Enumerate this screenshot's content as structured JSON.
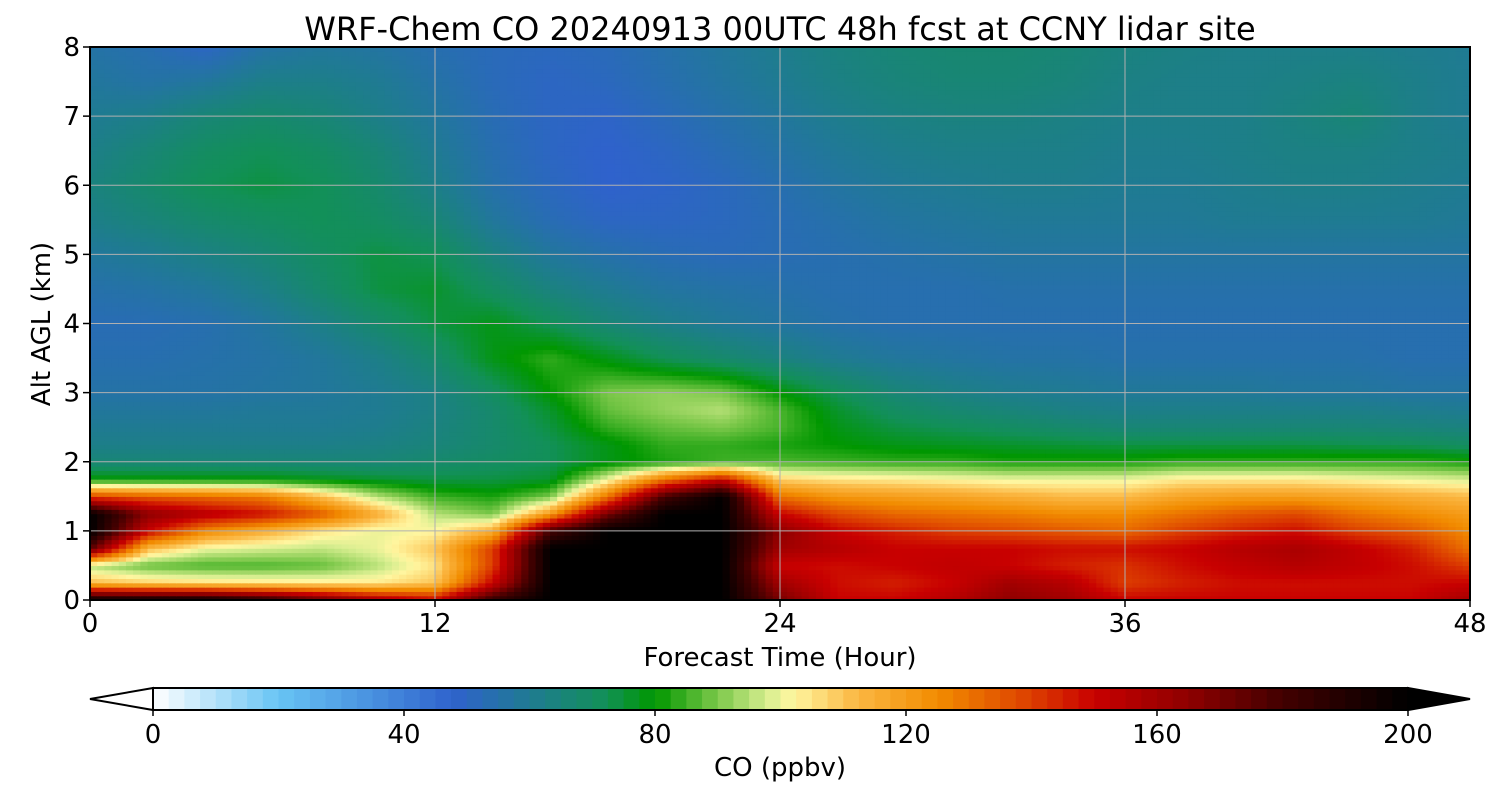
{
  "chart_data": {
    "type": "heatmap",
    "title": "WRF-Chem CO  20240913 00UTC 48h fcst at CCNY lidar site",
    "xlabel": "Forecast Time (Hour)",
    "ylabel": "Alt AGL (km)",
    "xlim": [
      0,
      48
    ],
    "ylim": [
      0,
      8
    ],
    "x_ticks": [
      "0",
      "12",
      "24",
      "36",
      "48"
    ],
    "y_ticks": [
      "0",
      "1",
      "2",
      "3",
      "4",
      "5",
      "6",
      "7",
      "8"
    ],
    "grid": true,
    "x_hours": [
      0,
      2,
      4,
      6,
      8,
      10,
      12,
      14,
      16,
      18,
      20,
      22,
      24,
      26,
      28,
      30,
      32,
      34,
      36,
      38,
      40,
      42,
      44,
      46,
      48
    ],
    "z_km": [
      0,
      0.25,
      0.5,
      0.75,
      1.0,
      1.25,
      1.5,
      1.75,
      2.0,
      2.25,
      2.5,
      2.75,
      3.0,
      3.5,
      4.0,
      4.5,
      5.0,
      5.5,
      6.0,
      6.5,
      7.0,
      7.5,
      8.0
    ],
    "co_ppbv": [
      [
        200,
        200,
        200,
        190,
        175,
        160,
        150,
        185,
        200,
        200,
        200,
        200,
        170,
        150,
        150,
        155,
        165,
        160,
        150,
        150,
        150,
        150,
        150,
        150,
        160
      ],
      [
        112,
        108,
        106,
        105,
        104,
        104,
        110,
        150,
        200,
        200,
        200,
        200,
        160,
        148,
        145,
        150,
        160,
        155,
        140,
        145,
        148,
        148,
        148,
        148,
        150
      ],
      [
        95,
        88,
        86,
        86,
        88,
        95,
        105,
        140,
        200,
        200,
        200,
        200,
        150,
        148,
        150,
        152,
        150,
        145,
        142,
        148,
        152,
        155,
        152,
        148,
        140
      ],
      [
        175,
        112,
        100,
        98,
        96,
        100,
        110,
        140,
        200,
        200,
        200,
        200,
        160,
        155,
        150,
        150,
        150,
        148,
        148,
        150,
        155,
        158,
        152,
        145,
        130
      ],
      [
        200,
        150,
        125,
        115,
        105,
        100,
        102,
        115,
        180,
        200,
        200,
        200,
        165,
        150,
        145,
        140,
        138,
        135,
        132,
        140,
        145,
        148,
        140,
        135,
        125
      ],
      [
        200,
        165,
        155,
        148,
        135,
        115,
        95,
        90,
        120,
        170,
        200,
        200,
        150,
        138,
        132,
        130,
        128,
        125,
        125,
        130,
        135,
        138,
        130,
        125,
        120
      ],
      [
        140,
        135,
        132,
        128,
        112,
        95,
        85,
        82,
        90,
        130,
        180,
        200,
        130,
        122,
        120,
        118,
        115,
        112,
        112,
        118,
        120,
        120,
        118,
        115,
        112
      ],
      [
        80,
        80,
        80,
        80,
        78,
        76,
        74,
        74,
        76,
        100,
        130,
        150,
        108,
        105,
        104,
        102,
        100,
        100,
        100,
        104,
        104,
        104,
        102,
        100,
        98
      ],
      [
        66,
        66,
        66,
        66,
        66,
        66,
        68,
        70,
        72,
        78,
        82,
        85,
        86,
        85,
        84,
        84,
        82,
        82,
        82,
        84,
        84,
        84,
        84,
        84,
        82
      ],
      [
        62,
        62,
        62,
        62,
        62,
        63,
        65,
        68,
        72,
        78,
        84,
        84,
        82,
        80,
        78,
        77,
        76,
        75,
        74,
        74,
        74,
        74,
        73,
        72,
        70
      ],
      [
        60,
        60,
        60,
        60,
        60,
        61,
        64,
        68,
        74,
        84,
        88,
        90,
        86,
        78,
        74,
        72,
        70,
        68,
        66,
        66,
        66,
        66,
        66,
        65,
        64
      ],
      [
        58,
        58,
        58,
        59,
        59,
        60,
        63,
        68,
        76,
        88,
        92,
        95,
        86,
        76,
        70,
        67,
        65,
        63,
        62,
        62,
        62,
        62,
        62,
        61,
        60
      ],
      [
        56,
        56,
        56,
        57,
        58,
        60,
        63,
        70,
        80,
        90,
        92,
        90,
        80,
        72,
        66,
        63,
        61,
        60,
        59,
        59,
        59,
        58,
        58,
        57,
        57
      ],
      [
        54,
        54,
        55,
        56,
        58,
        62,
        68,
        78,
        84,
        78,
        72,
        68,
        64,
        60,
        58,
        57,
        56,
        56,
        55,
        55,
        55,
        55,
        55,
        54,
        54
      ],
      [
        53,
        53,
        54,
        57,
        62,
        68,
        74,
        78,
        72,
        66,
        62,
        59,
        57,
        55,
        54,
        54,
        54,
        54,
        54,
        54,
        54,
        54,
        54,
        54,
        54
      ],
      [
        55,
        56,
        58,
        62,
        68,
        74,
        76,
        70,
        64,
        60,
        57,
        56,
        55,
        54,
        54,
        54,
        55,
        55,
        55,
        55,
        55,
        55,
        55,
        55,
        55
      ],
      [
        58,
        60,
        63,
        66,
        70,
        74,
        72,
        64,
        58,
        55,
        53,
        52,
        53,
        54,
        55,
        56,
        57,
        57,
        57,
        57,
        57,
        57,
        57,
        57,
        57
      ],
      [
        62,
        65,
        68,
        70,
        72,
        70,
        66,
        58,
        53,
        50,
        50,
        51,
        53,
        55,
        57,
        58,
        59,
        59,
        59,
        59,
        60,
        60,
        60,
        60,
        59
      ],
      [
        64,
        68,
        72,
        74,
        72,
        68,
        62,
        55,
        51,
        48,
        49,
        51,
        54,
        57,
        59,
        60,
        61,
        61,
        60,
        60,
        61,
        62,
        62,
        61,
        60
      ],
      [
        62,
        66,
        70,
        72,
        70,
        66,
        60,
        54,
        50,
        48,
        50,
        53,
        56,
        59,
        61,
        62,
        62,
        62,
        61,
        61,
        62,
        63,
        63,
        62,
        61
      ],
      [
        60,
        62,
        66,
        68,
        66,
        62,
        58,
        53,
        50,
        49,
        52,
        55,
        58,
        61,
        63,
        64,
        64,
        63,
        62,
        62,
        62,
        64,
        66,
        62,
        60
      ],
      [
        58,
        56,
        58,
        62,
        62,
        60,
        56,
        52,
        50,
        51,
        54,
        57,
        60,
        63,
        65,
        66,
        66,
        65,
        63,
        62,
        62,
        63,
        64,
        62,
        60
      ],
      [
        56,
        54,
        50,
        56,
        58,
        57,
        54,
        52,
        51,
        52,
        55,
        58,
        61,
        64,
        66,
        67,
        67,
        66,
        64,
        63,
        62,
        62,
        62,
        61,
        60
      ]
    ],
    "colorbar": {
      "label": "CO  (ppbv)",
      "min": 0,
      "max": 200,
      "ticks": [
        "0",
        "40",
        "80",
        "120",
        "160",
        "200"
      ],
      "extend": "both",
      "colormap_stops": [
        {
          "v": 0,
          "c": "#ffffff"
        },
        {
          "v": 20,
          "c": "#68c4f4"
        },
        {
          "v": 40,
          "c": "#3e7fd8"
        },
        {
          "v": 48,
          "c": "#2f62cc"
        },
        {
          "v": 60,
          "c": "#1f7b92"
        },
        {
          "v": 72,
          "c": "#129058"
        },
        {
          "v": 80,
          "c": "#009700"
        },
        {
          "v": 90,
          "c": "#7cc84a"
        },
        {
          "v": 98,
          "c": "#d8ee90"
        },
        {
          "v": 102,
          "c": "#fff6a0"
        },
        {
          "v": 112,
          "c": "#fbb844"
        },
        {
          "v": 125,
          "c": "#f28c00"
        },
        {
          "v": 140,
          "c": "#dc3e00"
        },
        {
          "v": 150,
          "c": "#c80000"
        },
        {
          "v": 165,
          "c": "#8e0000"
        },
        {
          "v": 180,
          "c": "#420000"
        },
        {
          "v": 200,
          "c": "#000000"
        }
      ]
    }
  }
}
